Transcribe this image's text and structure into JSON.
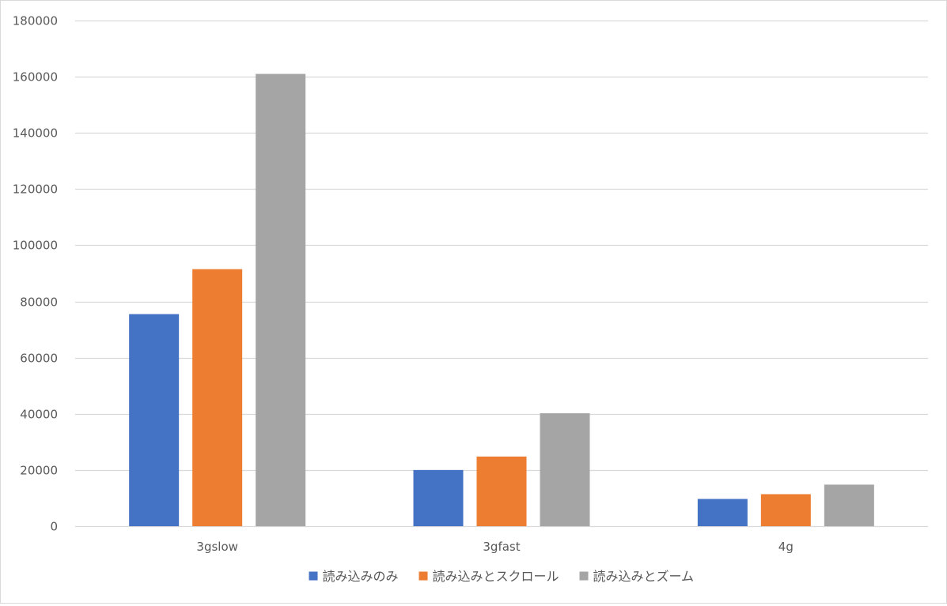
{
  "chart_data": {
    "type": "bar",
    "categories": [
      "3gslow",
      "3gfast",
      "4g"
    ],
    "series": [
      {
        "name": "読み込みのみ",
        "color": "#4472c4",
        "values": [
          75500,
          20000,
          9700
        ]
      },
      {
        "name": "読み込みとスクロール",
        "color": "#ed7d31",
        "values": [
          91500,
          24800,
          11400
        ]
      },
      {
        "name": "読み込みとズーム",
        "color": "#a5a5a5",
        "values": [
          161000,
          40200,
          14800
        ]
      }
    ],
    "title": "",
    "xlabel": "",
    "ylabel": "",
    "ylim": [
      0,
      180000
    ],
    "yticks": [
      0,
      20000,
      40000,
      60000,
      80000,
      100000,
      120000,
      140000,
      160000,
      180000
    ],
    "grid": true,
    "legend_position": "bottom",
    "gridline_color": "#d9d9d9"
  }
}
